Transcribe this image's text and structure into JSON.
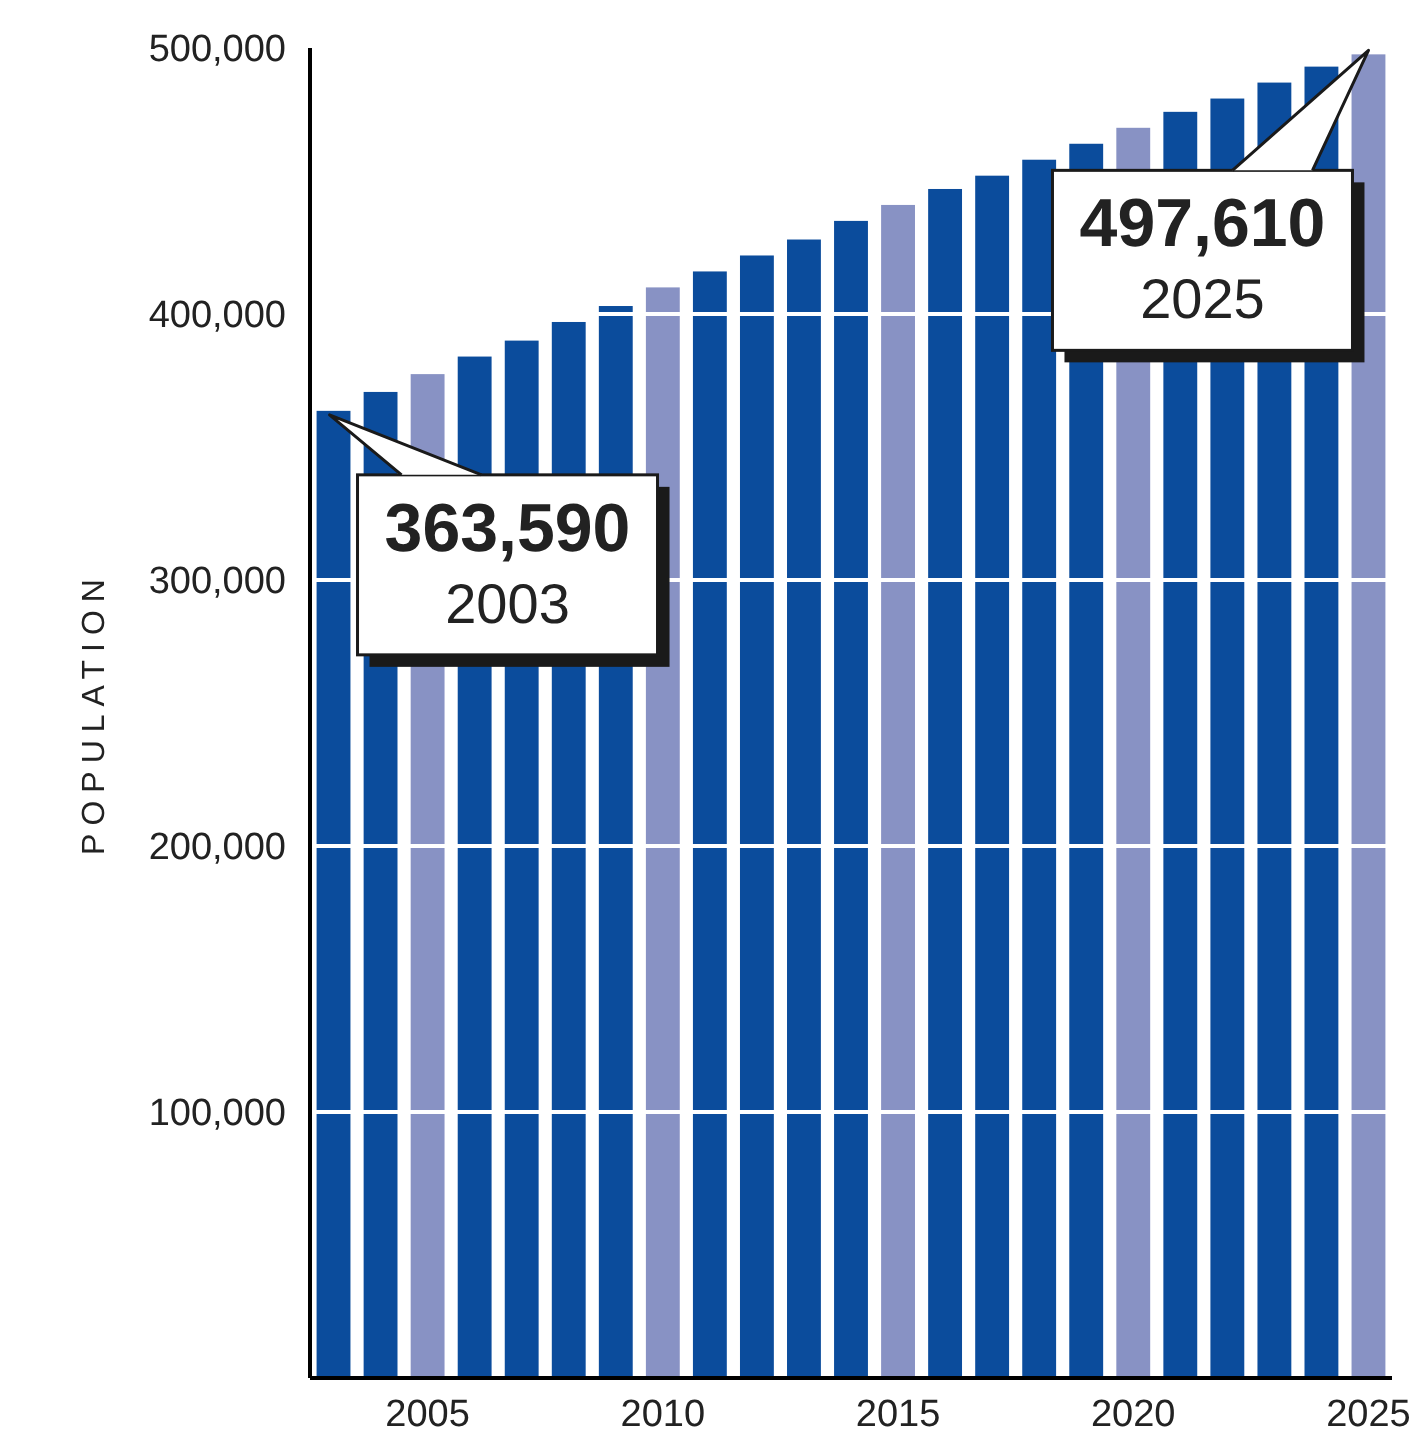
{
  "chart_data": {
    "type": "bar",
    "ylabel": "POPULATION",
    "x": [
      2003,
      2004,
      2005,
      2006,
      2007,
      2008,
      2009,
      2010,
      2011,
      2012,
      2013,
      2014,
      2015,
      2016,
      2017,
      2018,
      2019,
      2020,
      2021,
      2022,
      2023,
      2024,
      2025
    ],
    "values": [
      363590,
      370700,
      377400,
      384000,
      390000,
      397000,
      403000,
      410000,
      416000,
      422000,
      428000,
      435000,
      441000,
      447000,
      452000,
      458000,
      464000,
      470000,
      476000,
      481000,
      487000,
      493000,
      497610
    ],
    "colors": [
      "#0b4c9c",
      "#0b4c9c",
      "#8892c4",
      "#0b4c9c",
      "#0b4c9c",
      "#0b4c9c",
      "#0b4c9c",
      "#8892c4",
      "#0b4c9c",
      "#0b4c9c",
      "#0b4c9c",
      "#0b4c9c",
      "#8892c4",
      "#0b4c9c",
      "#0b4c9c",
      "#0b4c9c",
      "#0b4c9c",
      "#8892c4",
      "#0b4c9c",
      "#0b4c9c",
      "#0b4c9c",
      "#0b4c9c",
      "#8892c4"
    ],
    "xlim": [
      2002.5,
      2025.5
    ],
    "xticks": [
      2005,
      2010,
      2015,
      2020,
      2025
    ],
    "ylim": [
      0,
      500000
    ],
    "yticks": [
      {
        "value": 100000,
        "label": "100,000"
      },
      {
        "value": 200000,
        "label": "200,000"
      },
      {
        "value": 300000,
        "label": "300,000"
      },
      {
        "value": 400000,
        "label": "400,000"
      },
      {
        "value": 500000,
        "label": "500,000"
      }
    ],
    "grid": "y",
    "annotations": [
      {
        "text": "363,590\n2003",
        "x": 2003,
        "y": 363590
      },
      {
        "text": "497,610\n2025",
        "x": 2025,
        "y": 497610
      }
    ]
  }
}
